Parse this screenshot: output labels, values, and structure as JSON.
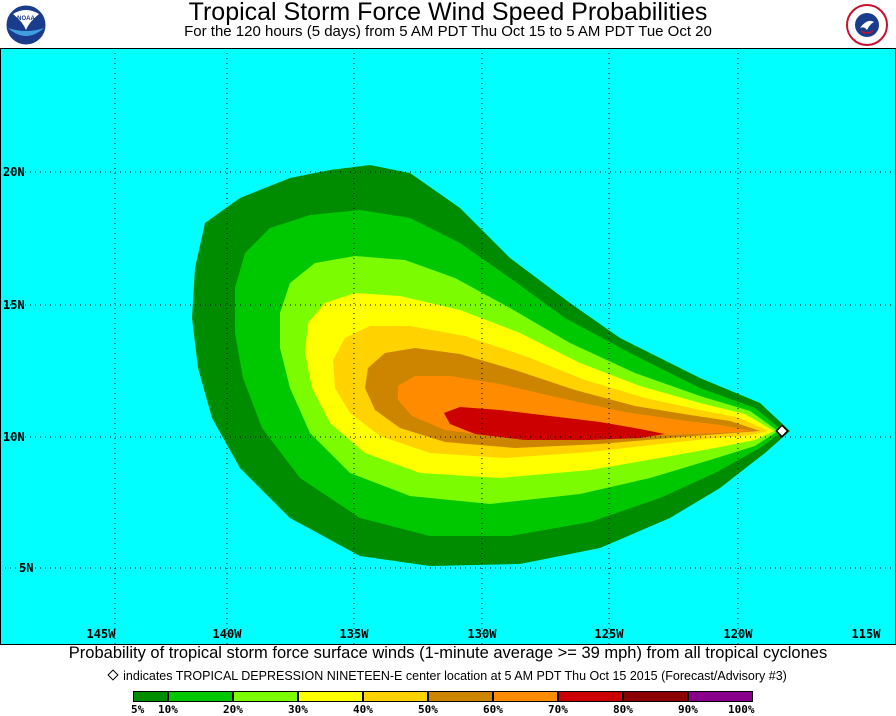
{
  "header": {
    "title": "Tropical Storm Force Wind Speed Probabilities",
    "subtitle": "For the 120 hours (5 days) from 5 AM PDT Thu Oct 15 to 5 AM PDT Tue Oct 20",
    "noaa_logo_text": "NOAA",
    "nws_logo_text": "NATIONAL WEATHER SERVICE"
  },
  "map": {
    "ocean_color": "#00ffff",
    "latitude_labels": [
      "20N",
      "15N",
      "10N",
      "5N"
    ],
    "longitude_labels": [
      "145W",
      "140W",
      "135W",
      "130W",
      "125W",
      "120W",
      "115W"
    ],
    "storm_center": {
      "lat": 10.3,
      "lon": -118.7
    }
  },
  "caption": "Probability of tropical storm force surface winds (1-minute average >= 39 mph) from all tropical cyclones",
  "note": "indicates TROPICAL DEPRESSION NINETEEN-E center location at 5 AM PDT Thu Oct 15 2015 (Forecast/Advisory #3)",
  "legend": {
    "colors": [
      "#008c00",
      "#00c800",
      "#7cfc00",
      "#ffff00",
      "#ffd200",
      "#cd8500",
      "#ff8c00",
      "#cd0000",
      "#8b0000",
      "#8b008b"
    ],
    "labels": [
      "5%",
      "10%",
      "20%",
      "30%",
      "40%",
      "50%",
      "60%",
      "70%",
      "80%",
      "90%",
      "100%"
    ]
  }
}
